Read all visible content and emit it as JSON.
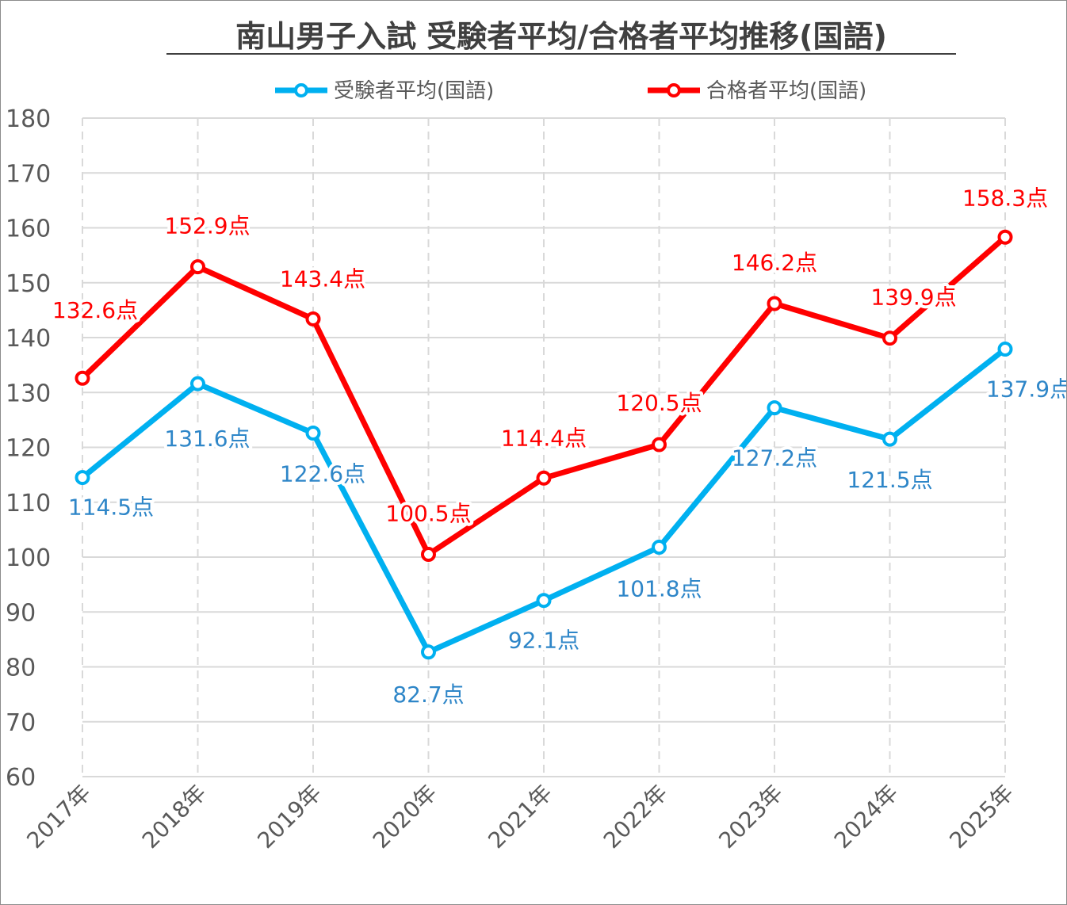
{
  "chart_data": {
    "type": "line",
    "title": "南山男子入試 受験者平均/合格者平均推移(国語)",
    "categories": [
      "2017年",
      "2018年",
      "2019年",
      "2020年",
      "2021年",
      "2022年",
      "2023年",
      "2024年",
      "2025年"
    ],
    "ylim": [
      60,
      180
    ],
    "yticks": [
      "60",
      "70",
      "80",
      "90",
      "100",
      "110",
      "120",
      "130",
      "140",
      "150",
      "160",
      "170",
      "180"
    ],
    "grid": true,
    "legend_position": "top",
    "label_suffix": "点",
    "series": [
      {
        "name": "受験者平均(国語)",
        "color": "#00B0F0",
        "label_color": "#2E86C8",
        "values": [
          114.5,
          131.6,
          122.6,
          82.7,
          92.1,
          101.8,
          127.2,
          121.5,
          137.9
        ]
      },
      {
        "name": "合格者平均(国語)",
        "color": "#FF0000",
        "label_color": "#FF0000",
        "values": [
          132.6,
          152.9,
          143.4,
          100.5,
          114.4,
          120.5,
          146.2,
          139.9,
          158.3
        ]
      }
    ]
  }
}
